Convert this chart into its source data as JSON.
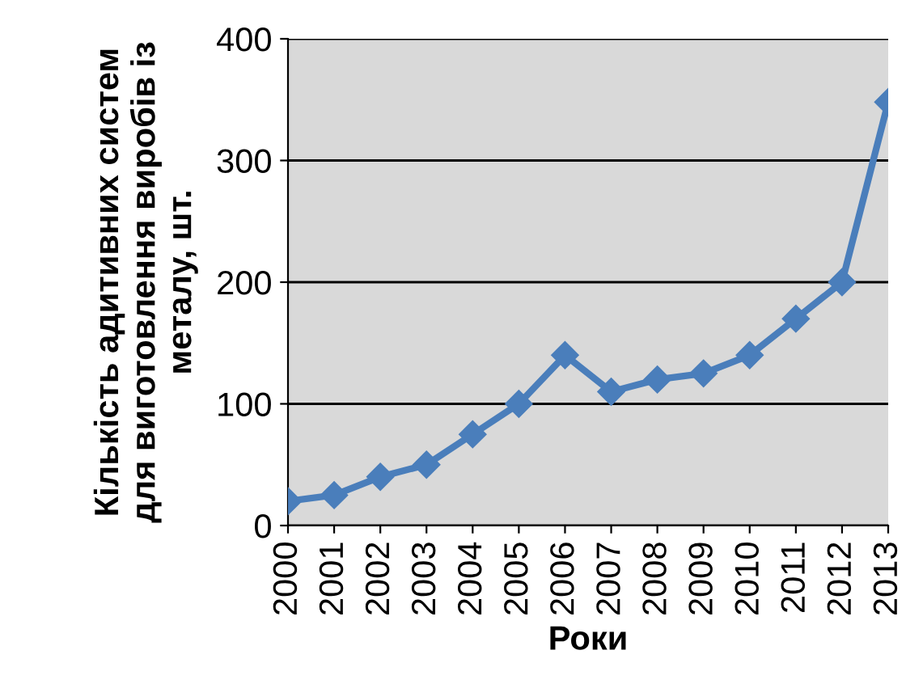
{
  "chart_data": {
    "type": "line",
    "xlabel": "Роки",
    "ylabel": "Кількість адитивних систем\nдля виготовлення виробів із\nметалу, шт.",
    "categories": [
      "2000",
      "2001",
      "2002",
      "2003",
      "2004",
      "2005",
      "2006",
      "2007",
      "2008",
      "2009",
      "2010",
      "2011",
      "2012",
      "2013"
    ],
    "series": [
      {
        "color": "#4a7ebb",
        "values": [
          20,
          25,
          40,
          50,
          75,
          100,
          140,
          110,
          120,
          125,
          140,
          170,
          200,
          348
        ]
      }
    ],
    "ylim": [
      0,
      400
    ],
    "yticks": [
      0,
      100,
      200,
      300,
      400
    ],
    "grid": "y",
    "marker": "diamond",
    "line_style": "solid",
    "legend": false
  }
}
